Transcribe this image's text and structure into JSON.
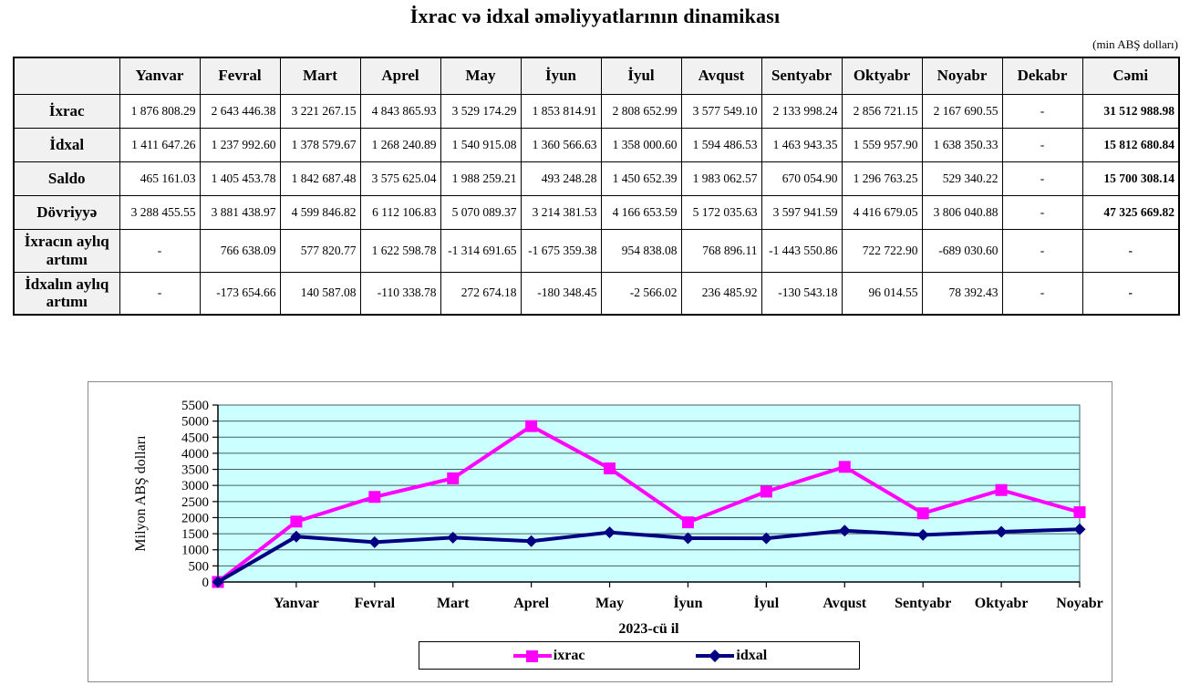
{
  "page": {
    "title": "İxrac və idxal əməliyyatlarının dinamikası",
    "unit_note": "(min ABŞ dolları)"
  },
  "table": {
    "columns": [
      "",
      "Yanvar",
      "Fevral",
      "Mart",
      "Aprel",
      "May",
      "İyun",
      "İyul",
      "Avqust",
      "Sentyabr",
      "Oktyabr",
      "Noyabr",
      "Dekabr",
      "Cəmi"
    ],
    "rows": [
      {
        "label": "İxrac",
        "tall": false,
        "values": [
          "1 876 808.29",
          "2 643 446.38",
          "3 221 267.15",
          "4 843 865.93",
          "3 529 174.29",
          "1 853 814.91",
          "2 808 652.99",
          "3 577 549.10",
          "2 133 998.24",
          "2 856 721.15",
          "2 167 690.55",
          "-",
          "31 512 988.98"
        ]
      },
      {
        "label": "İdxal",
        "tall": false,
        "values": [
          "1 411 647.26",
          "1 237 992.60",
          "1 378 579.67",
          "1 268 240.89",
          "1 540 915.08",
          "1 360 566.63",
          "1 358 000.60",
          "1 594 486.53",
          "1 463 943.35",
          "1 559 957.90",
          "1 638 350.33",
          "-",
          "15 812 680.84"
        ]
      },
      {
        "label": "Saldo",
        "tall": false,
        "values": [
          "465 161.03",
          "1 405 453.78",
          "1 842 687.48",
          "3 575 625.04",
          "1 988 259.21",
          "493 248.28",
          "1 450 652.39",
          "1 983 062.57",
          "670 054.90",
          "1 296 763.25",
          "529 340.22",
          "-",
          "15 700 308.14"
        ]
      },
      {
        "label": "Dövriyyə",
        "tall": false,
        "values": [
          "3 288 455.55",
          "3 881 438.97",
          "4 599 846.82",
          "6 112 106.83",
          "5 070 089.37",
          "3 214 381.53",
          "4 166 653.59",
          "5 172 035.63",
          "3 597 941.59",
          "4 416 679.05",
          "3 806 040.88",
          "-",
          "47 325 669.82"
        ]
      },
      {
        "label": "İxracın aylıq artımı",
        "tall": true,
        "values": [
          "-",
          "766 638.09",
          "577 820.77",
          "1 622 598.78",
          "-1 314 691.65",
          "-1 675 359.38",
          "954 838.08",
          "768 896.11",
          "-1 443 550.86",
          "722 722.90",
          "-689 030.60",
          "-",
          "-"
        ]
      },
      {
        "label": "İdxalın aylıq artımı",
        "tall": true,
        "values": [
          "-",
          "-173 654.66",
          "140 587.08",
          "-110 338.78",
          "272 674.18",
          "-180 348.45",
          "-2 566.02",
          "236 485.92",
          "-130 543.18",
          "96 014.55",
          "78 392.43",
          "-",
          "-"
        ]
      }
    ]
  },
  "chart_data": {
    "type": "line",
    "x": [
      "",
      "Yanvar",
      "Fevral",
      "Mart",
      "Aprel",
      "May",
      "İyun",
      "İyul",
      "Avqust",
      "Sentyabr",
      "Oktyabr",
      "Noyabr"
    ],
    "series": [
      {
        "name": "ixrac",
        "color": "#FF00FF",
        "marker": "square",
        "values": [
          0,
          1876.8,
          2643.4,
          3221.3,
          4843.9,
          3529.2,
          1853.8,
          2808.7,
          3577.5,
          2134.0,
          2856.7,
          2167.7
        ]
      },
      {
        "name": "idxal",
        "color": "#000080",
        "marker": "diamond",
        "values": [
          0,
          1411.6,
          1238.0,
          1378.6,
          1268.2,
          1540.9,
          1360.6,
          1358.0,
          1594.5,
          1463.9,
          1560.0,
          1638.4
        ]
      }
    ],
    "ylabel": "Milyon ABŞ dolları",
    "xlabel": "2023-cü il",
    "ylim": [
      0,
      5500
    ],
    "ytick_step": 500,
    "plot_bg": "#CCFFFF",
    "grid": true,
    "grid_color": "#406060",
    "legend_position": "bottom"
  }
}
